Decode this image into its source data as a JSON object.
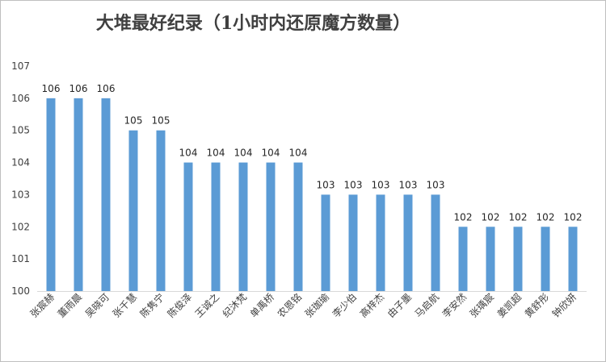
{
  "chart_data": {
    "type": "bar",
    "title": "大堆最好纪录（1小时内还原魔方数量）",
    "categories": [
      "张宸赫",
      "董雨晨",
      "吴晓可",
      "张千慧",
      "陈隽宁",
      "陈俊泽",
      "王诚之",
      "纪沐梵",
      "单禹桥",
      "农恩铭",
      "张珈瑜",
      "李少伯",
      "高梓杰",
      "由子墨",
      "马启航",
      "李安然",
      "张瑀宸",
      "姜凯超",
      "黄舒彤",
      "钟欣妍"
    ],
    "values": [
      106,
      106,
      106,
      105,
      105,
      104,
      104,
      104,
      104,
      104,
      103,
      103,
      103,
      103,
      103,
      102,
      102,
      102,
      102,
      102
    ],
    "ylim": [
      100,
      107
    ],
    "yticks": [
      100,
      101,
      102,
      103,
      104,
      105,
      106,
      107
    ],
    "bar_color": "#5b9bd5",
    "grid": false,
    "data_labels": true,
    "legend": "none"
  }
}
